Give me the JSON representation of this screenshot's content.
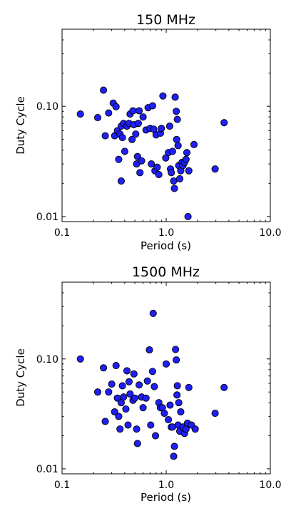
{
  "chart_data": [
    {
      "type": "scatter",
      "title": "150 MHz",
      "xlabel": "Period (s)",
      "ylabel": "Duty Cycle",
      "xscale": "log",
      "yscale": "log",
      "xlim": [
        0.1,
        10.0
      ],
      "ylim": [
        0.009,
        0.5
      ],
      "xticks": [
        {
          "value": 0.1,
          "label": "0.1"
        },
        {
          "value": 1.0,
          "label": "1.0"
        },
        {
          "value": 10.0,
          "label": "10.0"
        }
      ],
      "yticks": [
        {
          "value": 0.01,
          "label": "0.01"
        },
        {
          "value": 0.1,
          "label": "0.10"
        }
      ],
      "grid": false,
      "marker_color": "#1f1ff5",
      "points": [
        [
          0.15,
          0.085
        ],
        [
          0.22,
          0.079
        ],
        [
          0.25,
          0.14
        ],
        [
          0.26,
          0.054
        ],
        [
          0.28,
          0.087
        ],
        [
          0.31,
          0.107
        ],
        [
          0.32,
          0.054
        ],
        [
          0.33,
          0.099
        ],
        [
          0.34,
          0.06
        ],
        [
          0.35,
          0.033
        ],
        [
          0.36,
          0.056
        ],
        [
          0.37,
          0.066
        ],
        [
          0.37,
          0.021
        ],
        [
          0.38,
          0.052
        ],
        [
          0.39,
          0.07
        ],
        [
          0.4,
          0.039
        ],
        [
          0.42,
          0.066
        ],
        [
          0.44,
          0.07
        ],
        [
          0.45,
          0.085
        ],
        [
          0.47,
          0.05
        ],
        [
          0.48,
          0.091
        ],
        [
          0.49,
          0.068
        ],
        [
          0.51,
          0.056
        ],
        [
          0.52,
          0.03
        ],
        [
          0.53,
          0.035
        ],
        [
          0.54,
          0.07
        ],
        [
          0.55,
          0.091
        ],
        [
          0.56,
          0.025
        ],
        [
          0.58,
          0.032
        ],
        [
          0.6,
          0.08
        ],
        [
          0.64,
          0.061
        ],
        [
          0.67,
          0.097
        ],
        [
          0.7,
          0.063
        ],
        [
          0.72,
          0.03
        ],
        [
          0.74,
          0.101
        ],
        [
          0.76,
          0.062
        ],
        [
          0.78,
          0.026
        ],
        [
          0.8,
          0.055
        ],
        [
          0.82,
          0.028
        ],
        [
          0.85,
          0.024
        ],
        [
          0.88,
          0.057
        ],
        [
          0.9,
          0.063
        ],
        [
          0.93,
          0.124
        ],
        [
          0.99,
          0.034
        ],
        [
          1.05,
          0.038
        ],
        [
          1.08,
          0.066
        ],
        [
          1.1,
          0.027
        ],
        [
          1.12,
          0.025
        ],
        [
          1.15,
          0.039
        ],
        [
          1.18,
          0.021
        ],
        [
          1.2,
          0.018
        ],
        [
          1.22,
          0.121
        ],
        [
          1.25,
          0.09
        ],
        [
          1.26,
          0.05
        ],
        [
          1.28,
          0.076
        ],
        [
          1.3,
          0.044
        ],
        [
          1.32,
          0.029
        ],
        [
          1.35,
          0.022
        ],
        [
          1.38,
          0.026
        ],
        [
          1.42,
          0.031
        ],
        [
          1.45,
          0.029
        ],
        [
          1.5,
          0.031
        ],
        [
          1.55,
          0.033
        ],
        [
          1.58,
          0.038
        ],
        [
          1.62,
          0.01
        ],
        [
          1.65,
          0.026
        ],
        [
          1.85,
          0.045
        ],
        [
          2.95,
          0.027
        ],
        [
          3.6,
          0.071
        ]
      ]
    },
    {
      "type": "scatter",
      "title": "1500 MHz",
      "xlabel": "Period (s)",
      "ylabel": "Duty Cycle",
      "xscale": "log",
      "yscale": "log",
      "xlim": [
        0.1,
        10.0
      ],
      "ylim": [
        0.009,
        0.5
      ],
      "xticks": [
        {
          "value": 0.1,
          "label": "0.1"
        },
        {
          "value": 1.0,
          "label": "1.0"
        },
        {
          "value": 10.0,
          "label": "10.0"
        }
      ],
      "yticks": [
        {
          "value": 0.01,
          "label": "0.01"
        },
        {
          "value": 0.1,
          "label": "0.10"
        }
      ],
      "grid": false,
      "marker_color": "#1f1ff5",
      "points": [
        [
          0.15,
          0.1
        ],
        [
          0.22,
          0.05
        ],
        [
          0.25,
          0.083
        ],
        [
          0.26,
          0.027
        ],
        [
          0.28,
          0.05
        ],
        [
          0.3,
          0.059
        ],
        [
          0.32,
          0.033
        ],
        [
          0.33,
          0.087
        ],
        [
          0.34,
          0.044
        ],
        [
          0.35,
          0.03
        ],
        [
          0.36,
          0.023
        ],
        [
          0.37,
          0.04
        ],
        [
          0.38,
          0.057
        ],
        [
          0.39,
          0.045
        ],
        [
          0.41,
          0.035
        ],
        [
          0.42,
          0.078
        ],
        [
          0.43,
          0.025
        ],
        [
          0.44,
          0.062
        ],
        [
          0.45,
          0.048
        ],
        [
          0.48,
          0.042
        ],
        [
          0.49,
          0.073
        ],
        [
          0.5,
          0.044
        ],
        [
          0.52,
          0.023
        ],
        [
          0.53,
          0.017
        ],
        [
          0.55,
          0.058
        ],
        [
          0.58,
          0.045
        ],
        [
          0.6,
          0.036
        ],
        [
          0.64,
          0.044
        ],
        [
          0.66,
          0.063
        ],
        [
          0.69,
          0.121
        ],
        [
          0.71,
          0.025
        ],
        [
          0.74,
          0.077
        ],
        [
          0.75,
          0.26
        ],
        [
          0.77,
          0.056
        ],
        [
          0.79,
          0.02
        ],
        [
          0.85,
          0.04
        ],
        [
          0.88,
          0.036
        ],
        [
          0.92,
          0.036
        ],
        [
          0.96,
          0.032
        ],
        [
          1.0,
          0.09
        ],
        [
          1.05,
          0.028
        ],
        [
          1.09,
          0.038
        ],
        [
          1.12,
          0.024
        ],
        [
          1.15,
          0.024
        ],
        [
          1.18,
          0.013
        ],
        [
          1.2,
          0.016
        ],
        [
          1.23,
          0.122
        ],
        [
          1.25,
          0.098
        ],
        [
          1.27,
          0.047
        ],
        [
          1.28,
          0.057
        ],
        [
          1.3,
          0.025
        ],
        [
          1.32,
          0.04
        ],
        [
          1.35,
          0.022
        ],
        [
          1.38,
          0.033
        ],
        [
          1.45,
          0.024
        ],
        [
          1.5,
          0.021
        ],
        [
          1.55,
          0.023
        ],
        [
          1.6,
          0.026
        ],
        [
          1.65,
          0.055
        ],
        [
          1.75,
          0.025
        ],
        [
          1.9,
          0.023
        ],
        [
          2.95,
          0.032
        ],
        [
          3.6,
          0.055
        ]
      ]
    }
  ]
}
